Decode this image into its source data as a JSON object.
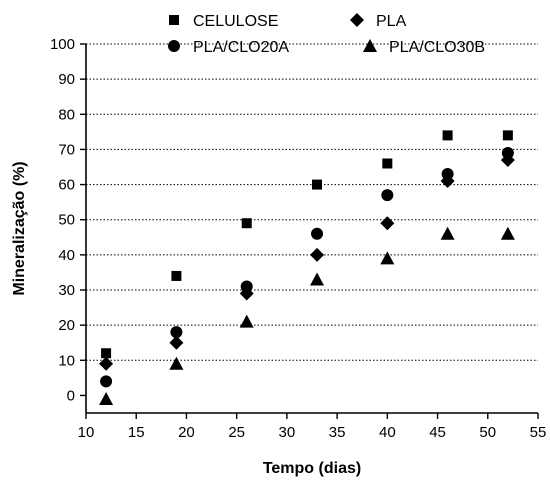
{
  "chart_data": {
    "type": "scatter",
    "xlabel": "Tempo (dias)",
    "ylabel": "Mineralização (%)",
    "xlim": [
      10,
      55
    ],
    "ylim": [
      -5,
      100
    ],
    "xticks": [
      10,
      15,
      20,
      25,
      30,
      35,
      40,
      45,
      50,
      55
    ],
    "yticks": [
      0,
      10,
      20,
      30,
      40,
      50,
      60,
      70,
      80,
      90,
      100
    ],
    "grid": "horizontal-dotted",
    "legend_position": "top",
    "series": [
      {
        "name": "CELULOSE",
        "marker": "square",
        "color": "#000000",
        "x": [
          12,
          19,
          26,
          33,
          40,
          46,
          52
        ],
        "y": [
          12,
          34,
          49,
          60,
          66,
          74,
          74
        ]
      },
      {
        "name": "PLA",
        "marker": "diamond",
        "color": "#000000",
        "x": [
          12,
          19,
          26,
          33,
          40,
          46,
          52
        ],
        "y": [
          9,
          15,
          29,
          40,
          49,
          61,
          67
        ]
      },
      {
        "name": "PLA/CLO20A",
        "marker": "circle",
        "color": "#000000",
        "x": [
          12,
          19,
          26,
          33,
          40,
          46,
          52
        ],
        "y": [
          4,
          18,
          31,
          46,
          57,
          63,
          69
        ]
      },
      {
        "name": "PLA/CLO30B",
        "marker": "triangle",
        "color": "#000000",
        "x": [
          12,
          19,
          26,
          33,
          40,
          46,
          52
        ],
        "y": [
          -1,
          9,
          21,
          33,
          39,
          46,
          46
        ]
      }
    ]
  }
}
